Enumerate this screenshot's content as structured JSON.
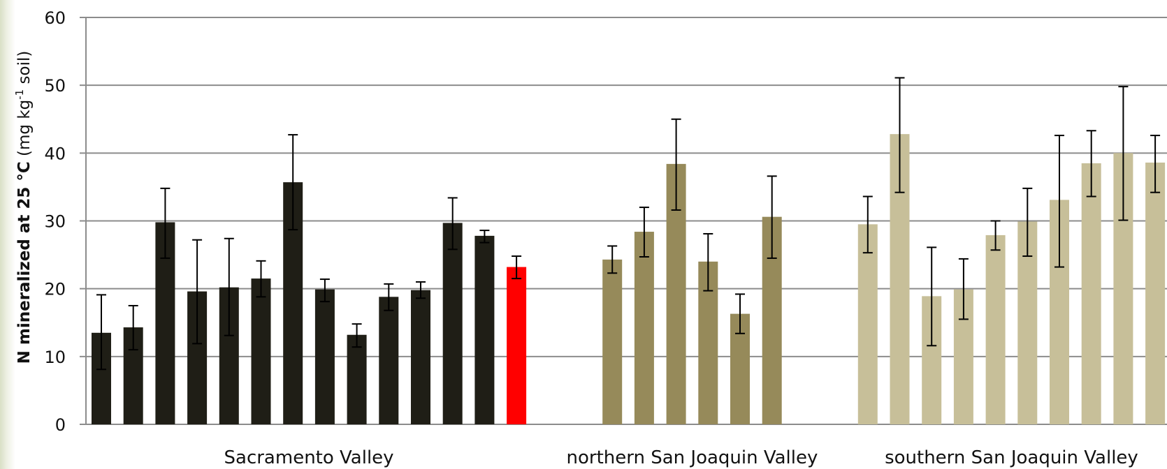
{
  "chart_data": {
    "type": "bar",
    "ylabel": {
      "main": "N mineralized at 25 °C",
      "unit_prefix": "(mg kg",
      "unit_sup": "-1",
      "unit_suffix": " soil)"
    },
    "ylim": [
      0,
      60
    ],
    "yticks": [
      0,
      10,
      20,
      30,
      40,
      50,
      60
    ],
    "grid": true,
    "groups": [
      {
        "name": "Sacramento Valley",
        "color": "#1f1e16",
        "bars": [
          {
            "value": 13.5,
            "err": [
              8.1,
              19.1
            ]
          },
          {
            "value": 14.3,
            "err": [
              11.0,
              17.5
            ]
          },
          {
            "value": 29.8,
            "err": [
              24.5,
              34.8
            ]
          },
          {
            "value": 19.6,
            "err": [
              11.9,
              27.2
            ]
          },
          {
            "value": 20.2,
            "err": [
              13.1,
              27.4
            ]
          },
          {
            "value": 21.5,
            "err": [
              18.8,
              24.1
            ]
          },
          {
            "value": 35.7,
            "err": [
              28.7,
              42.7
            ]
          },
          {
            "value": 19.9,
            "err": [
              18.1,
              21.4
            ]
          },
          {
            "value": 13.2,
            "err": [
              11.4,
              14.8
            ]
          },
          {
            "value": 18.8,
            "err": [
              16.8,
              20.7
            ]
          },
          {
            "value": 19.8,
            "err": [
              18.6,
              21.0
            ]
          },
          {
            "value": 29.7,
            "err": [
              25.8,
              33.4
            ]
          },
          {
            "value": 27.8,
            "err": [
              26.8,
              28.6
            ]
          },
          {
            "value": 23.2,
            "err": [
              21.5,
              24.8
            ],
            "color": "#ff0000"
          }
        ]
      },
      {
        "name": "northern San Joaquin Valley",
        "color": "#968a5a",
        "bars": [
          {
            "value": 24.3,
            "err": [
              22.3,
              26.3
            ]
          },
          {
            "value": 28.4,
            "err": [
              24.7,
              32.0
            ]
          },
          {
            "value": 38.4,
            "err": [
              31.6,
              45.0
            ]
          },
          {
            "value": 24.0,
            "err": [
              19.7,
              28.1
            ]
          },
          {
            "value": 16.3,
            "err": [
              13.4,
              19.2
            ]
          },
          {
            "value": 30.6,
            "err": [
              24.5,
              36.6
            ]
          }
        ]
      },
      {
        "name": "southern San Joaquin Valley",
        "color": "#c7bf99",
        "bars": [
          {
            "value": 29.5,
            "err": [
              25.3,
              33.6
            ]
          },
          {
            "value": 42.8,
            "err": [
              34.2,
              51.1
            ]
          },
          {
            "value": 18.9,
            "err": [
              11.6,
              26.1
            ]
          },
          {
            "value": 19.9,
            "err": [
              15.5,
              24.4
            ]
          },
          {
            "value": 27.9,
            "err": [
              25.7,
              30.0
            ]
          },
          {
            "value": 29.9,
            "err": [
              24.8,
              34.8
            ]
          },
          {
            "value": 33.1,
            "err": [
              23.2,
              42.6
            ]
          },
          {
            "value": 38.5,
            "err": [
              33.6,
              43.3
            ]
          },
          {
            "value": 40.0,
            "err": [
              30.1,
              49.8
            ]
          },
          {
            "value": 38.6,
            "err": [
              34.2,
              42.6
            ]
          }
        ]
      }
    ]
  }
}
